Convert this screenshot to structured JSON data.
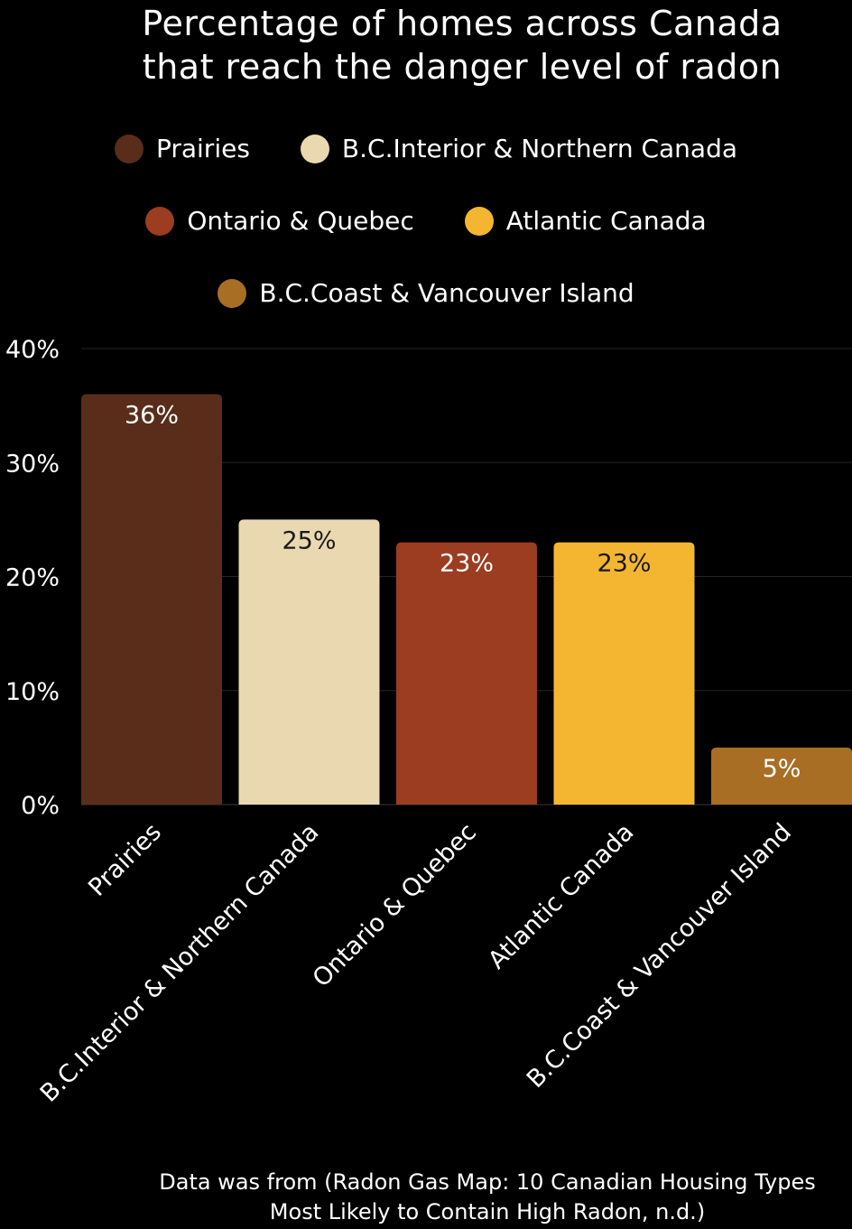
{
  "chart_data": {
    "type": "bar",
    "title_lines": [
      "Percentage of homes across Canada",
      "that reach the danger level of radon"
    ],
    "categories": [
      "Prairies",
      "B.C.Interior & Northern Canada",
      "Ontario & Quebec",
      "Atlantic Canada",
      "B.C.Coast & Vancouver Island"
    ],
    "values": [
      36,
      25,
      23,
      23,
      5
    ],
    "value_labels": [
      "36%",
      "25%",
      "23%",
      "23%",
      "5%"
    ],
    "colors": [
      "#592d1a",
      "#ead8b0",
      "#9c3c21",
      "#f4b631",
      "#a86e24"
    ],
    "label_colors": [
      "#ffffff",
      "#1a1a1a",
      "#ffffff",
      "#1a1a1a",
      "#ffffff"
    ],
    "ylim": [
      0,
      40
    ],
    "yticks": [
      0,
      10,
      20,
      30,
      40
    ],
    "ytick_labels": [
      "0%",
      "10%",
      "20%",
      "30%",
      "40%"
    ],
    "grid": true,
    "legend_position": "top",
    "legend": [
      {
        "label": "Prairies",
        "color": "#592d1a"
      },
      {
        "label": "B.C.Interior & Northern Canada",
        "color": "#ead8b0"
      },
      {
        "label": "Ontario & Quebec",
        "color": "#9c3c21"
      },
      {
        "label": "Atlantic Canada",
        "color": "#f4b631"
      },
      {
        "label": "B.C.Coast & Vancouver Island",
        "color": "#a86e24"
      }
    ],
    "source_lines": [
      "Data was from (Radon Gas Map: 10 Canadian Housing Types",
      "Most Likely to Contain High Radon, n.d.)"
    ]
  }
}
